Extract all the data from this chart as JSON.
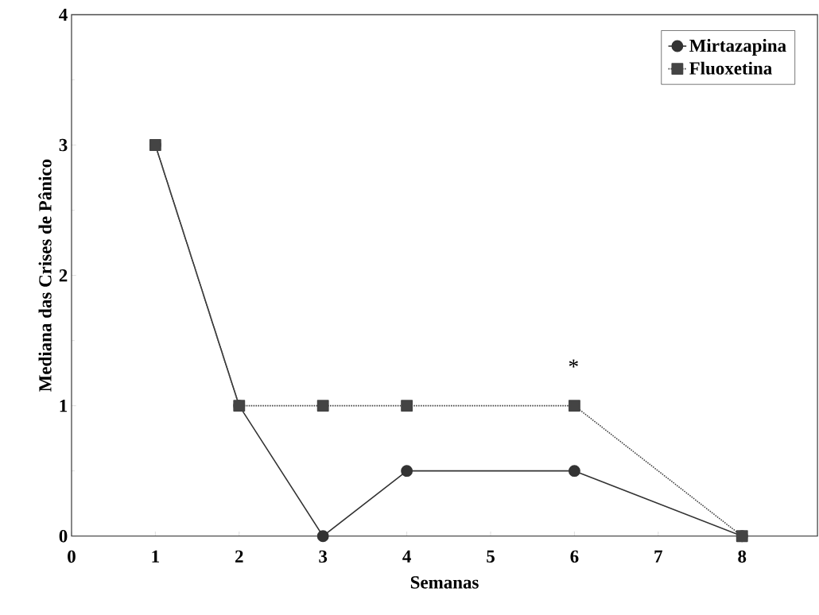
{
  "chart_data": {
    "type": "line",
    "xlabel": "Semanas",
    "ylabel": "Mediana das Crises de Pânico",
    "xlim": [
      0,
      8.9
    ],
    "xticks": [
      0,
      1,
      2,
      3,
      4,
      5,
      6,
      7,
      8
    ],
    "ylim": [
      0,
      4
    ],
    "yticks": [
      0,
      1,
      2,
      3,
      4
    ],
    "legend": "top right",
    "grid": false,
    "series": [
      {
        "name": "Mirtazapina",
        "color": "#333333",
        "marker": "circle",
        "line_style": "solid",
        "x": [
          1,
          2,
          3,
          4,
          6,
          8
        ],
        "values": [
          3,
          1,
          0,
          0.5,
          0.5,
          0
        ]
      },
      {
        "name": "Fluoxetina",
        "color": "#444444",
        "marker": "square",
        "line_style": "dotted",
        "x": [
          1,
          2,
          3,
          4,
          6,
          8
        ],
        "values": [
          3,
          1,
          1,
          1,
          1,
          0
        ]
      }
    ],
    "annotations": [
      "*"
    ]
  }
}
